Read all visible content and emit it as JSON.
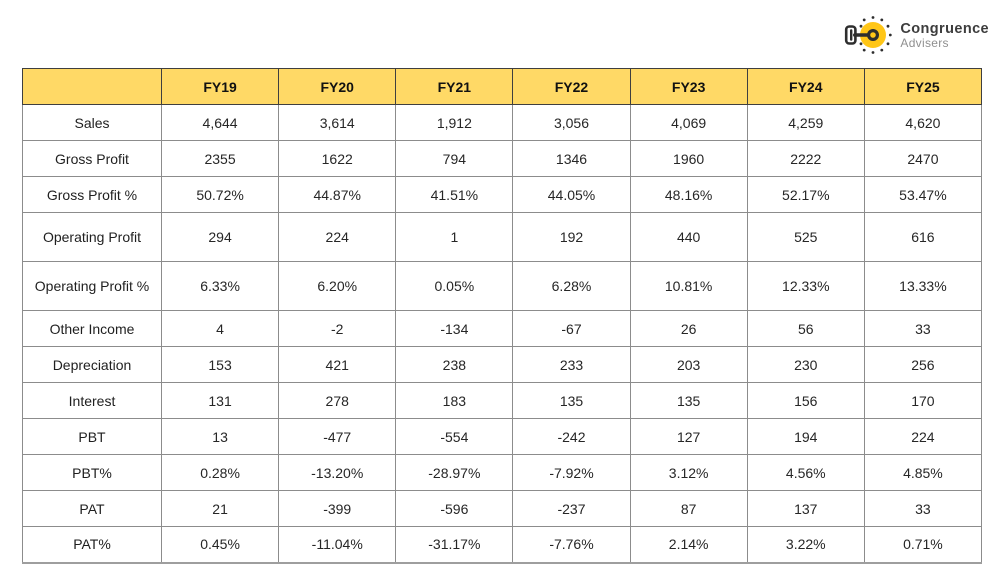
{
  "logo": {
    "line1": "Congruence",
    "line2": "Advisers",
    "colors": {
      "circle_yellow": "#FFC617",
      "key_dark": "#2e2e2e",
      "brand_text": "#3d3d3d",
      "sub_text": "#8f8f8f"
    }
  },
  "table_style": {
    "header_bg": "#FFD966",
    "body_border": "#8c8c8c",
    "header_border": "#3f3f3f"
  },
  "chart_data": {
    "type": "table",
    "title": "",
    "corner_label": "",
    "categories": [
      "FY19",
      "FY20",
      "FY21",
      "FY22",
      "FY23",
      "FY24",
      "FY25"
    ],
    "series": [
      {
        "name": "Sales",
        "values": [
          "4,644",
          "3,614",
          "1,912",
          "3,056",
          "4,069",
          "4,259",
          "4,620"
        ]
      },
      {
        "name": "Gross Profit",
        "values": [
          "2355",
          "1622",
          "794",
          "1346",
          "1960",
          "2222",
          "2470"
        ]
      },
      {
        "name": "Gross Profit %",
        "values": [
          "50.72%",
          "44.87%",
          "41.51%",
          "44.05%",
          "48.16%",
          "52.17%",
          "53.47%"
        ]
      },
      {
        "name": "Operating Profit",
        "values": [
          "294",
          "224",
          "1",
          "192",
          "440",
          "525",
          "616"
        ]
      },
      {
        "name": "Operating Profit %",
        "values": [
          "6.33%",
          "6.20%",
          "0.05%",
          "6.28%",
          "10.81%",
          "12.33%",
          "13.33%"
        ]
      },
      {
        "name": "Other Income",
        "values": [
          "4",
          "-2",
          "-134",
          "-67",
          "26",
          "56",
          "33"
        ]
      },
      {
        "name": "Depreciation",
        "values": [
          "153",
          "421",
          "238",
          "233",
          "203",
          "230",
          "256"
        ]
      },
      {
        "name": "Interest",
        "values": [
          "131",
          "278",
          "183",
          "135",
          "135",
          "156",
          "170"
        ]
      },
      {
        "name": "PBT",
        "values": [
          "13",
          "-477",
          "-554",
          "-242",
          "127",
          "194",
          "224"
        ]
      },
      {
        "name": "PBT%",
        "values": [
          "0.28%",
          "-13.20%",
          "-28.97%",
          "-7.92%",
          "3.12%",
          "4.56%",
          "4.85%"
        ]
      },
      {
        "name": "PAT",
        "values": [
          "21",
          "-399",
          "-596",
          "-237",
          "87",
          "137",
          "33"
        ]
      },
      {
        "name": "PAT%",
        "values": [
          "0.45%",
          "-11.04%",
          "-31.17%",
          "-7.76%",
          "2.14%",
          "3.22%",
          "0.71%"
        ]
      }
    ]
  }
}
